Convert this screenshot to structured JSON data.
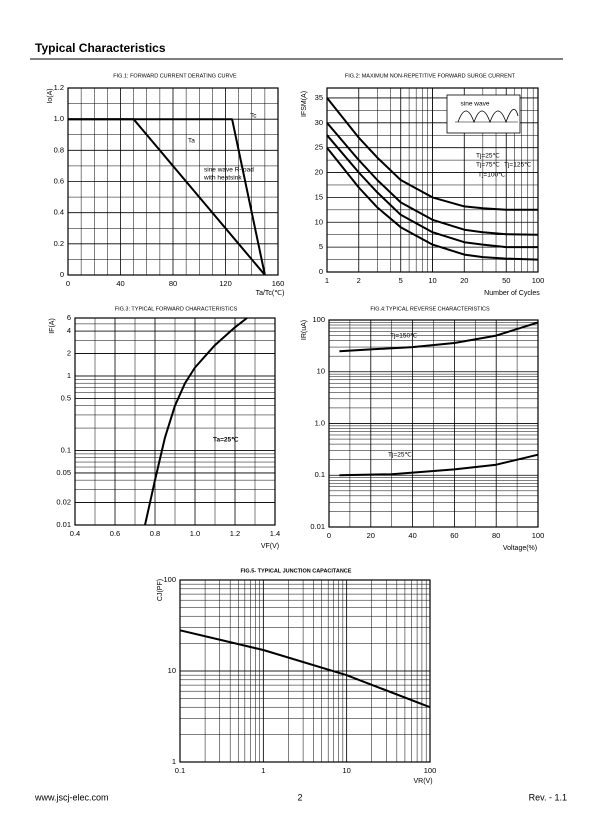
{
  "header": {
    "title": "Typical Characteristics"
  },
  "footer": {
    "website": "www.jscj-elec.com",
    "page": "2",
    "revision": "Rev. - 1.1"
  },
  "chart_data": [
    {
      "type": "line",
      "title": "FIG.1: FORWARD CURRENT DERATING CURVE",
      "xlabel": "Ta/Tc(℃)",
      "ylabel": "Io(A)",
      "xlim": [
        0,
        160
      ],
      "xticks": [
        0,
        40,
        80,
        120,
        160
      ],
      "ylim": [
        0,
        1.2
      ],
      "yticks": [
        0,
        0.2,
        0.4,
        0.6,
        0.8,
        {
          "value": 1,
          "label": "1.0"
        },
        1.2
      ],
      "grid": true,
      "annotations": [
        "sine wave R-load",
        "with heatsink"
      ],
      "series": [
        {
          "name": "Ta",
          "color": "#000000",
          "x": [
            0,
            50,
            150
          ],
          "values": [
            1,
            1,
            0
          ]
        },
        {
          "name": "Tc",
          "color": "#000000",
          "x": [
            0,
            125,
            150
          ],
          "values": [
            1,
            1,
            0
          ]
        }
      ]
    },
    {
      "type": "line",
      "title": "FIG.2: MAXIMUM NON-REPETITIVE FORWARD SURGE CURRENT",
      "xlabel": "Number of Cycles",
      "ylabel": "IFSM(A)",
      "xscale": "log",
      "xlim": [
        1,
        100
      ],
      "xticks": [
        1,
        2,
        5,
        10,
        20,
        50,
        100
      ],
      "ylim": [
        0,
        37
      ],
      "yticks": [
        0,
        5,
        10,
        15,
        20,
        25,
        30,
        35
      ],
      "grid": true,
      "annotations": [
        "sine wave"
      ],
      "series": [
        {
          "name": "Tj=25℃",
          "color": "#000000",
          "x": [
            1,
            2,
            3,
            5,
            10,
            20,
            30,
            50,
            100
          ],
          "values": [
            35,
            27,
            23,
            18.5,
            15,
            13.2,
            12.8,
            12.5,
            12.5
          ]
        },
        {
          "name": "Tj=75℃",
          "color": "#000000",
          "x": [
            1,
            2,
            3,
            5,
            10,
            20,
            30,
            50,
            100
          ],
          "values": [
            30,
            22.5,
            18.5,
            14,
            10.5,
            8.5,
            8,
            7.6,
            7.5
          ]
        },
        {
          "name": "Tj=100℃",
          "color": "#000000",
          "x": [
            1,
            2,
            3,
            5,
            10,
            20,
            30,
            50,
            100
          ],
          "values": [
            27.5,
            20,
            16,
            11.5,
            8,
            6,
            5.5,
            5,
            5
          ]
        },
        {
          "name": "Tj=125℃",
          "color": "#000000",
          "x": [
            1,
            2,
            3,
            5,
            10,
            20,
            30,
            50,
            100
          ],
          "values": [
            25,
            17,
            13,
            9,
            5.5,
            3.5,
            3,
            2.7,
            2.5
          ]
        }
      ]
    },
    {
      "type": "line",
      "title": "FIG.3: TYPICAL FORWARD CHARACTERISTICS",
      "xlabel": "VF(V)",
      "ylabel": "IF(A)",
      "xlim": [
        0.4,
        1.4
      ],
      "xticks": [
        0.4,
        0.6,
        0.8,
        {
          "value": 1,
          "label": "1.0"
        },
        1.2,
        1.4
      ],
      "yscale": "log",
      "ylim": [
        0.01,
        6
      ],
      "yticks": [
        0.01,
        0.02,
        0.05,
        0.1,
        0.5,
        1,
        2,
        4,
        6
      ],
      "grid": true,
      "series": [
        {
          "name": "Ta=25℃",
          "color": "#000000",
          "x": [
            0.75,
            0.8,
            0.85,
            0.9,
            0.95,
            1.0,
            1.1,
            1.2,
            1.26
          ],
          "values": [
            0.01,
            0.04,
            0.15,
            0.4,
            0.8,
            1.3,
            2.6,
            4.5,
            6
          ]
        }
      ]
    },
    {
      "type": "line",
      "title": "FIG.4:TYPICAL REVERSE CHARACTERISTICS",
      "xlabel": "Voltage(%)",
      "ylabel": "IR(uA)",
      "xlim": [
        0,
        100
      ],
      "xticks": [
        0,
        20,
        40,
        60,
        80,
        100
      ],
      "yscale": "log",
      "ylim": [
        0.01,
        100
      ],
      "yticks": [
        0.01,
        0.1,
        {
          "value": 1,
          "label": "1.0"
        },
        10,
        100
      ],
      "grid": true,
      "series": [
        {
          "name": "Tj=150℃",
          "color": "#000000",
          "x": [
            5,
            20,
            40,
            60,
            80,
            100
          ],
          "values": [
            25,
            27,
            30,
            36,
            50,
            90
          ]
        },
        {
          "name": "Tj=25℃",
          "color": "#000000",
          "x": [
            5,
            30,
            60,
            80,
            100
          ],
          "values": [
            0.1,
            0.105,
            0.13,
            0.16,
            0.25
          ]
        }
      ]
    },
    {
      "type": "line",
      "title": "FIG.5- TYPICAL JUNCTION CAPACITANCE",
      "xlabel": "VR(V)",
      "ylabel": "CJ(PF)",
      "xscale": "log",
      "xlim": [
        0.1,
        100
      ],
      "xticks": [
        0.1,
        1,
        10,
        100
      ],
      "yscale": "log",
      "ylim": [
        1,
        100
      ],
      "yticks": [
        1,
        10,
        100
      ],
      "grid": true,
      "series": [
        {
          "color": "#000000",
          "x": [
            0.1,
            1,
            10,
            100
          ],
          "values": [
            28,
            17,
            9,
            4
          ]
        }
      ]
    }
  ]
}
